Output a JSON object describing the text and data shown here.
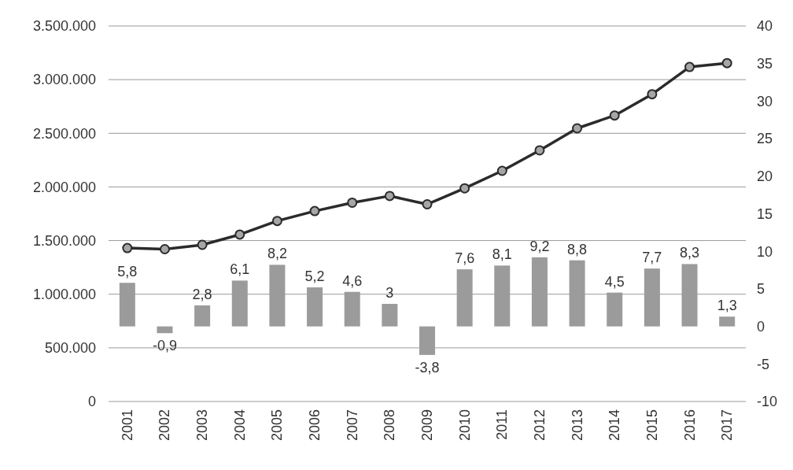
{
  "chart_data": {
    "type": "bar",
    "categories": [
      "2001",
      "2002",
      "2003",
      "2004",
      "2005",
      "2006",
      "2007",
      "2008",
      "2009",
      "2010",
      "2011",
      "2012",
      "2013",
      "2014",
      "2015",
      "2016",
      "2017"
    ],
    "series": [
      {
        "axis": "y2",
        "color": "#9b9b9b",
        "values": [
          5.8,
          -0.9,
          2.8,
          6.1,
          8.2,
          5.2,
          4.6,
          3,
          -3.8,
          7.6,
          8.1,
          9.2,
          8.8,
          4.5,
          7.7,
          8.3,
          1.3
        ],
        "value_labels": [
          "5,8",
          "-0,9",
          "2,8",
          "6,1",
          "8,2",
          "5,2",
          "4,6",
          "3",
          "-3,8",
          "7,6",
          "8,1",
          "9,2",
          "8,8",
          "4,5",
          "7,7",
          "8,3",
          "1,3"
        ]
      },
      {
        "type": "line",
        "axis": "y",
        "color": "#2b2b2b",
        "marker": "circle",
        "line_style": "solid",
        "values": [
          1430000,
          1420000,
          1460000,
          1556000,
          1683000,
          1775000,
          1853000,
          1916000,
          1838000,
          1987000,
          2150000,
          2341000,
          2546000,
          2666000,
          2864000,
          3118000,
          3154000
        ]
      }
    ],
    "ylim": [
      0,
      3500000
    ],
    "yticks": [
      {
        "value": 0,
        "label": "0"
      },
      {
        "value": 500000,
        "label": "500.000"
      },
      {
        "value": 1000000,
        "label": "1.000.000"
      },
      {
        "value": 1500000,
        "label": "1.500.000"
      },
      {
        "value": 2000000,
        "label": "2.000.000"
      },
      {
        "value": 2500000,
        "label": "2.500.000"
      },
      {
        "value": 3000000,
        "label": "3.000.000"
      },
      {
        "value": 3500000,
        "label": "3.500.000"
      }
    ],
    "y2lim": [
      -10,
      40
    ],
    "y2ticks": [
      -10,
      -5,
      0,
      5,
      10,
      15,
      20,
      25,
      30,
      35,
      40
    ],
    "grid": "y"
  }
}
